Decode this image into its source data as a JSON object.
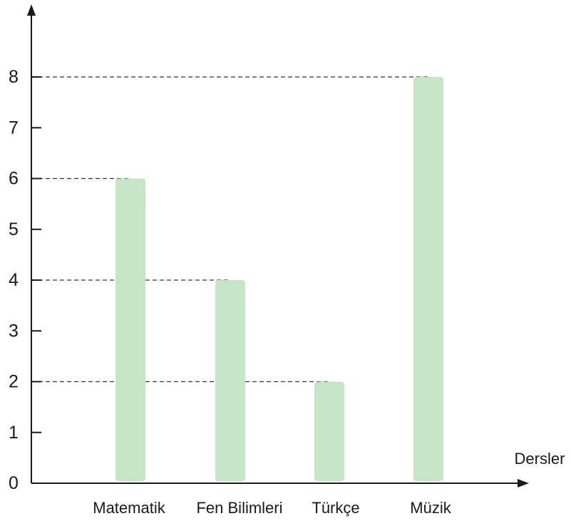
{
  "chart_data": {
    "type": "bar",
    "categories": [
      "Matematik",
      "Fen Bilimleri",
      "Türkçe",
      "Müzik"
    ],
    "values": [
      6,
      4,
      2,
      8
    ],
    "title": "",
    "xlabel": "Dersler",
    "ylabel": "",
    "ylim": [
      0,
      8
    ],
    "yticks": [
      "0",
      "1",
      "2",
      "3",
      "4",
      "5",
      "6",
      "7",
      "8"
    ],
    "dashed_guides": [
      2,
      4,
      6,
      8
    ],
    "grid": false,
    "legend": "none",
    "bar_color": "#c5e5c4"
  }
}
